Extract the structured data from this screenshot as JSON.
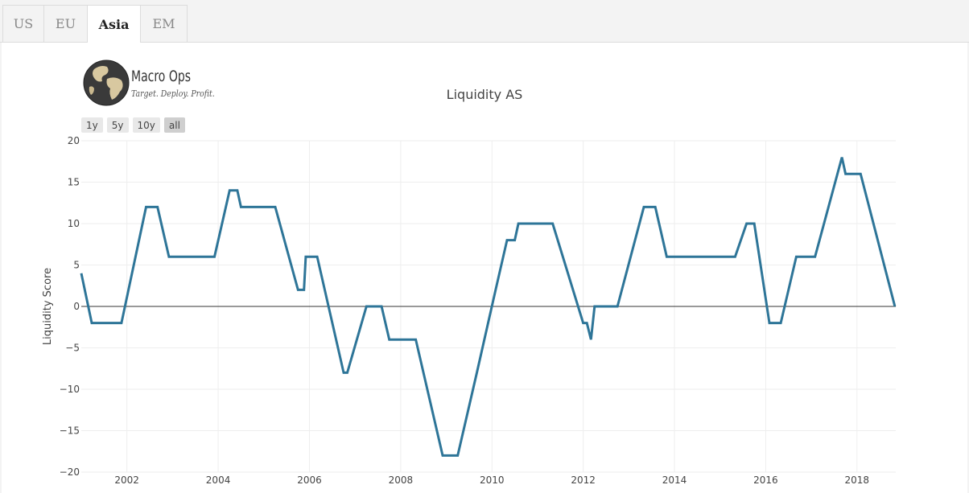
{
  "tabs": [
    {
      "label": "US",
      "active": false
    },
    {
      "label": "EU",
      "active": false
    },
    {
      "label": "Asia",
      "active": true
    },
    {
      "label": "EM",
      "active": false
    }
  ],
  "logo": {
    "name": "Macro Ops",
    "tagline": "Target. Deploy. Profit."
  },
  "range_buttons": [
    {
      "label": "1y",
      "active": false
    },
    {
      "label": "5y",
      "active": false
    },
    {
      "label": "10y",
      "active": false
    },
    {
      "label": "all",
      "active": true
    }
  ],
  "colors": {
    "line": "#2e7598",
    "zero_line": "#333333",
    "grid": "#eeeeee"
  },
  "chart_data": {
    "type": "line",
    "title": "Liquidity AS",
    "xlabel": "",
    "ylabel": "Liquidity Score",
    "xlim": [
      2001.0,
      2018.85
    ],
    "ylim": [
      -20,
      20
    ],
    "grid": true,
    "x_ticks": [
      2002,
      2004,
      2006,
      2008,
      2010,
      2012,
      2014,
      2016,
      2018
    ],
    "y_ticks": [
      -20,
      -15,
      -10,
      -5,
      0,
      5,
      10,
      15,
      20
    ],
    "series": [
      {
        "x": [
          2001.0,
          2001.23,
          2001.58,
          2001.88,
          2002.42,
          2002.67,
          2002.92,
          2003.42,
          2003.92,
          2004.25,
          2004.42,
          2004.5,
          2005.0,
          2005.25,
          2005.75,
          2005.88,
          2005.92,
          2006.17,
          2006.75,
          2006.83,
          2007.25,
          2007.58,
          2007.75,
          2008.0,
          2008.33,
          2008.92,
          2009.25,
          2009.67,
          2010.08,
          2010.33,
          2010.5,
          2010.58,
          2010.83,
          2011.33,
          2012.0,
          2012.08,
          2012.17,
          2012.25,
          2012.75,
          2013.33,
          2013.58,
          2013.83,
          2014.17,
          2014.83,
          2015.33,
          2015.58,
          2015.75,
          2016.08,
          2016.33,
          2016.67,
          2017.08,
          2017.67,
          2017.75,
          2018.08,
          2018.83
        ],
        "y": [
          4,
          -2,
          -2,
          -2,
          12,
          12,
          6,
          6,
          6,
          14,
          14,
          12,
          12,
          12,
          2,
          2,
          6,
          6,
          -8,
          -8,
          0,
          0,
          -4,
          -4,
          -4,
          -18,
          -18,
          -8,
          2,
          8,
          8,
          10,
          10,
          10,
          -2,
          -2,
          -4,
          0,
          0,
          12,
          12,
          6,
          6,
          6,
          6,
          10,
          10,
          -2,
          -2,
          6,
          6,
          18,
          16,
          16,
          0
        ]
      }
    ]
  }
}
